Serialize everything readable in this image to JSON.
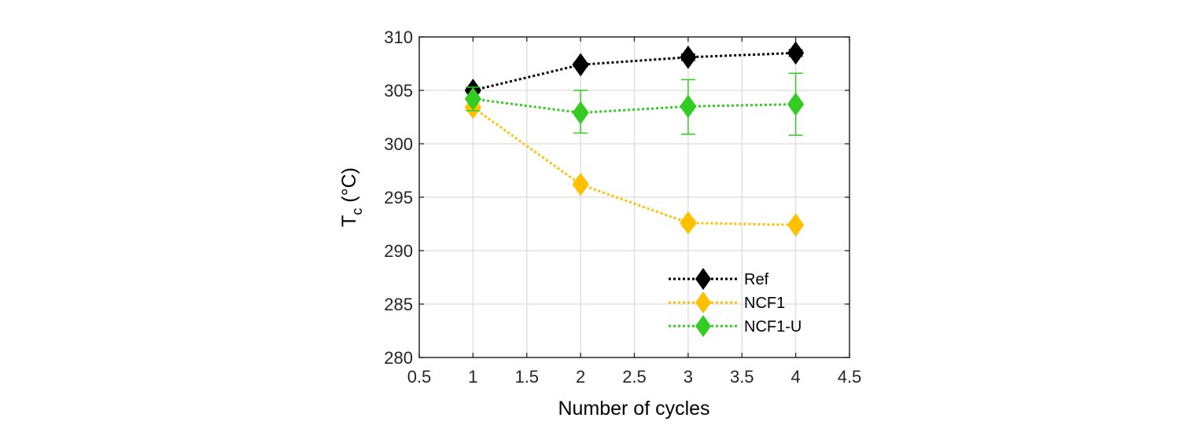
{
  "chart_data": {
    "type": "line",
    "title": "",
    "xlabel": "Number of cycles",
    "ylabel_main": "T",
    "ylabel_sub": "c",
    "ylabel_unit": " (°C)",
    "xlim": [
      0.5,
      4.5
    ],
    "ylim": [
      280,
      310
    ],
    "xticks": [
      0.5,
      1,
      1.5,
      2,
      2.5,
      3,
      3.5,
      4,
      4.5
    ],
    "xtick_labels": [
      "0.5",
      "1",
      "1.5",
      "2",
      "2.5",
      "3",
      "3.5",
      "4",
      "4.5"
    ],
    "yticks": [
      280,
      285,
      290,
      295,
      300,
      305,
      310
    ],
    "ytick_labels": [
      "280",
      "285",
      "290",
      "295",
      "300",
      "305",
      "310"
    ],
    "grid": true,
    "legend_position": "bottom-right",
    "x": [
      1,
      2,
      3,
      4
    ],
    "series": [
      {
        "name": "Ref",
        "color": "#000000",
        "marker": "diamond",
        "line_style": "dotted",
        "values": [
          305.0,
          307.4,
          308.1,
          308.5
        ],
        "error_low": [
          0.2,
          0.2,
          0.3,
          0.3
        ],
        "error_high": [
          0.2,
          0.2,
          0.3,
          0.3
        ]
      },
      {
        "name": "NCF1",
        "color": "#FFC000",
        "marker": "diamond",
        "line_style": "dotted",
        "values": [
          303.4,
          296.2,
          292.6,
          292.4
        ],
        "error_low": [
          0.2,
          0.2,
          0.3,
          0.1
        ],
        "error_high": [
          0.2,
          0.2,
          0.3,
          0.1
        ]
      },
      {
        "name": "NCF1-U",
        "color": "#33CC22",
        "marker": "diamond",
        "line_style": "dotted",
        "values": [
          304.2,
          302.9,
          303.5,
          303.7
        ],
        "error_low": [
          1.1,
          1.9,
          2.6,
          2.9
        ],
        "error_high": [
          1.1,
          2.1,
          2.5,
          2.9
        ]
      }
    ]
  }
}
